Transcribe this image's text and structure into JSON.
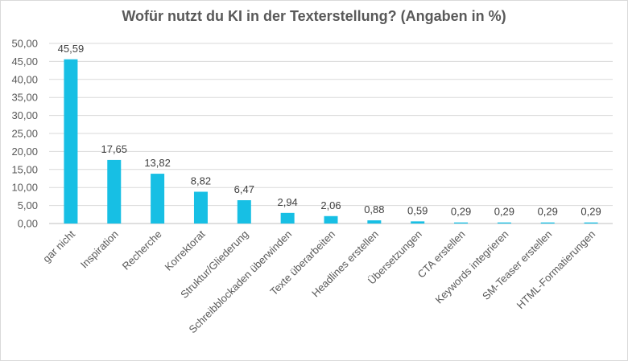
{
  "chart_data": {
    "type": "bar",
    "title": "Wofür nutzt du KI in der Texterstellung? (Angaben in %)",
    "xlabel": "",
    "ylabel": "",
    "ylim": [
      0,
      50
    ],
    "yticks": [
      "0,00",
      "5,00",
      "10,00",
      "15,00",
      "20,00",
      "25,00",
      "30,00",
      "35,00",
      "40,00",
      "45,00",
      "50,00"
    ],
    "grid": true,
    "bar_color": "#17bfe4",
    "categories": [
      "gar nicht",
      "Inspiration",
      "Recherche",
      "Korrektorat",
      "Struktur/Gliederung",
      "Schreibblockaden überwinden",
      "Texte überarbeiten",
      "Headlines erstellen",
      "Übersetzungen",
      "CTA erstellen",
      "Keywords integrieren",
      "SM-Teaser erstellen",
      "HTML-Formatierungen"
    ],
    "values": [
      45.59,
      17.65,
      13.82,
      8.82,
      6.47,
      2.94,
      2.06,
      0.88,
      0.59,
      0.29,
      0.29,
      0.29,
      0.29
    ],
    "value_labels": [
      "45,59",
      "17,65",
      "13,82",
      "8,82",
      "6,47",
      "2,94",
      "2,06",
      "0,88",
      "0,59",
      "0,29",
      "0,29",
      "0,29",
      "0,29"
    ]
  }
}
